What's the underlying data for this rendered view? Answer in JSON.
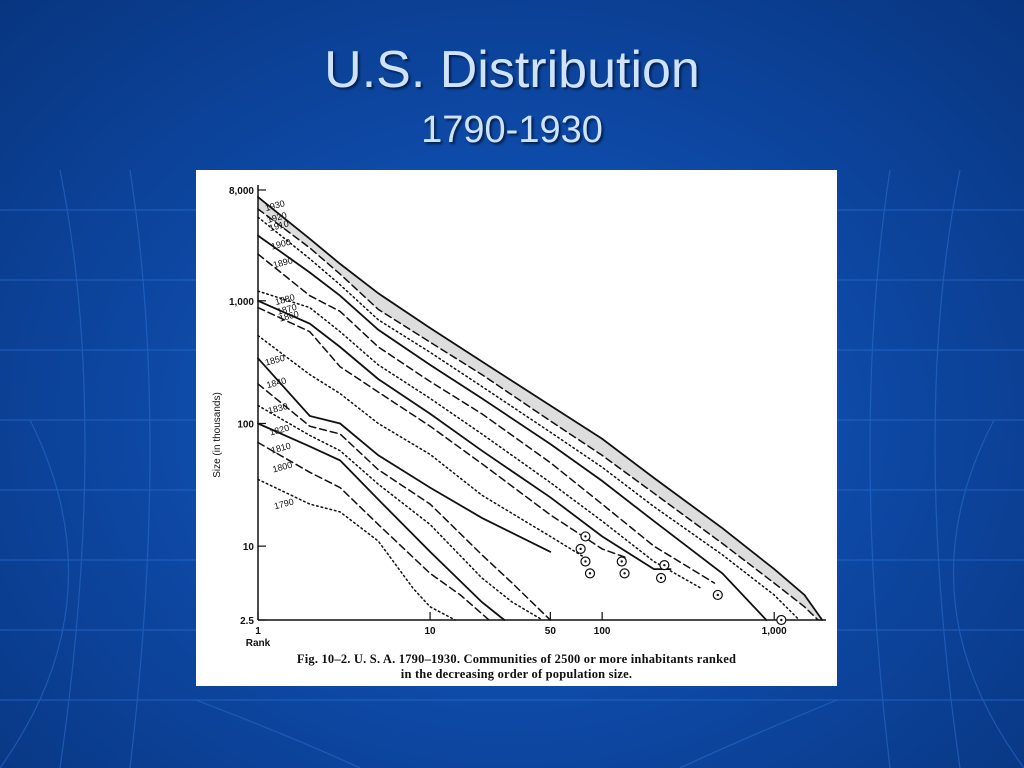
{
  "slide": {
    "title": "U.S. Distribution",
    "subtitle": "1790-1930"
  },
  "figure": {
    "caption_line1": "Fig. 10–2. U. S. A. 1790–1930. Communities of 2500 or more inhabitants ranked",
    "caption_line2": "in the decreasing order of population size."
  },
  "colors": {
    "background": "#0e4aa8",
    "title_text": "#cfe3ff",
    "panel": "#ffffff",
    "ink": "#111111",
    "shading": "#bbbbbb"
  },
  "chart_data": {
    "type": "line",
    "title": "",
    "xlabel": "Rank",
    "ylabel": "Size (in thousands)",
    "x_scale": "log",
    "y_scale": "log",
    "xlim": [
      1,
      2000
    ],
    "ylim": [
      2.5,
      8000
    ],
    "x_ticks": [
      {
        "value": 1,
        "label": "1"
      },
      {
        "value": 10,
        "label": "10"
      },
      {
        "value": 50,
        "label": "50"
      },
      {
        "value": 100,
        "label": "100"
      },
      {
        "value": 1000,
        "label": "1,000"
      }
    ],
    "y_ticks": [
      {
        "value": 8000,
        "label": "8,000"
      },
      {
        "value": 1000,
        "label": "1,000"
      },
      {
        "value": 100,
        "label": "100"
      },
      {
        "value": 10,
        "label": "10"
      },
      {
        "value": 2.5,
        "label": "2.5"
      }
    ],
    "grid": false,
    "series": [
      {
        "name": "1930",
        "style": "solid",
        "x": [
          1,
          2,
          3,
          5,
          10,
          20,
          50,
          100,
          200,
          500,
          1000,
          1500,
          1900
        ],
        "y": [
          7000,
          3200,
          2000,
          1150,
          600,
          320,
          140,
          75,
          36,
          14,
          6.5,
          4,
          2.5
        ]
      },
      {
        "name": "1920",
        "style": "dashed",
        "x": [
          1,
          2,
          3,
          5,
          10,
          20,
          50,
          100,
          200,
          500,
          1000,
          1500,
          1800
        ],
        "y": [
          5600,
          2700,
          1650,
          850,
          460,
          250,
          105,
          55,
          27,
          10.5,
          5,
          3.2,
          2.5
        ]
      },
      {
        "name": "1910",
        "style": "dotted",
        "x": [
          1,
          2,
          3,
          5,
          10,
          20,
          50,
          100,
          200,
          500,
          1000,
          1400
        ],
        "y": [
          4800,
          2200,
          1350,
          700,
          380,
          200,
          85,
          44,
          21,
          8.5,
          4,
          2.5
        ]
      },
      {
        "name": "1900",
        "style": "solid",
        "x": [
          1,
          2,
          3,
          5,
          10,
          20,
          50,
          100,
          200,
          500,
          900
        ],
        "y": [
          3400,
          1700,
          1100,
          580,
          300,
          160,
          68,
          34,
          16,
          6,
          2.5
        ]
      },
      {
        "name": "1890",
        "style": "dashed",
        "x": [
          1,
          2,
          3,
          5,
          10,
          20,
          50,
          100,
          200,
          450
        ],
        "y": [
          2400,
          1100,
          820,
          420,
          220,
          120,
          48,
          22,
          10,
          5
        ]
      },
      {
        "name": "1880",
        "style": "dotted",
        "x": [
          1,
          2,
          3,
          5,
          10,
          20,
          50,
          100,
          200,
          380
        ],
        "y": [
          1200,
          880,
          560,
          300,
          160,
          82,
          33,
          16,
          7.5,
          4.5
        ]
      },
      {
        "name": "1870",
        "style": "solid",
        "x": [
          1,
          2,
          3,
          5,
          10,
          20,
          50,
          100,
          200,
          250
        ],
        "y": [
          1000,
          650,
          420,
          230,
          120,
          60,
          25,
          12,
          6.5,
          6.5
        ]
      },
      {
        "name": "1860",
        "style": "dashed",
        "x": [
          1,
          2,
          3,
          5,
          10,
          20,
          50,
          100,
          140
        ],
        "y": [
          880,
          560,
          290,
          180,
          95,
          47,
          18,
          9.5,
          8
        ]
      },
      {
        "name": "1850",
        "style": "dotted",
        "x": [
          1,
          2,
          3,
          5,
          10,
          20,
          50,
          80
        ],
        "y": [
          520,
          250,
          175,
          100,
          56,
          26,
          12,
          8
        ]
      },
      {
        "name": "1840",
        "style": "solid",
        "x": [
          1,
          2,
          3,
          5,
          10,
          20,
          50
        ],
        "y": [
          340,
          115,
          100,
          55,
          30,
          17,
          9
        ]
      },
      {
        "name": "1830",
        "style": "dashed",
        "x": [
          1,
          2,
          3,
          5,
          10,
          20,
          30,
          50
        ],
        "y": [
          210,
          95,
          82,
          42,
          22,
          8.5,
          5,
          2.5
        ]
      },
      {
        "name": "1820",
        "style": "dotted",
        "x": [
          1,
          2,
          3,
          5,
          10,
          20,
          30,
          45
        ],
        "y": [
          140,
          80,
          60,
          32,
          15,
          5.5,
          3.5,
          2.5
        ]
      },
      {
        "name": "1810",
        "style": "solid",
        "x": [
          1,
          2,
          3,
          5,
          10,
          20,
          27
        ],
        "y": [
          100,
          65,
          50,
          24,
          9,
          3.5,
          2.5
        ]
      },
      {
        "name": "1800",
        "style": "dashed",
        "x": [
          1,
          2,
          3,
          5,
          10,
          15,
          22
        ],
        "y": [
          70,
          40,
          30,
          15,
          6,
          4,
          2.5
        ]
      },
      {
        "name": "1790",
        "style": "dotted",
        "x": [
          1,
          2,
          3,
          5,
          8,
          10,
          14
        ],
        "y": [
          35,
          22,
          19,
          11,
          4.5,
          3.2,
          2.5
        ]
      }
    ],
    "circled_points": [
      {
        "x": 80,
        "y": 12
      },
      {
        "x": 75,
        "y": 9.5
      },
      {
        "x": 80,
        "y": 7.5
      },
      {
        "x": 85,
        "y": 6
      },
      {
        "x": 130,
        "y": 7.5
      },
      {
        "x": 135,
        "y": 6
      },
      {
        "x": 230,
        "y": 7
      },
      {
        "x": 220,
        "y": 5.5
      },
      {
        "x": 470,
        "y": 4
      },
      {
        "x": 1100,
        "y": 2.5
      }
    ]
  }
}
